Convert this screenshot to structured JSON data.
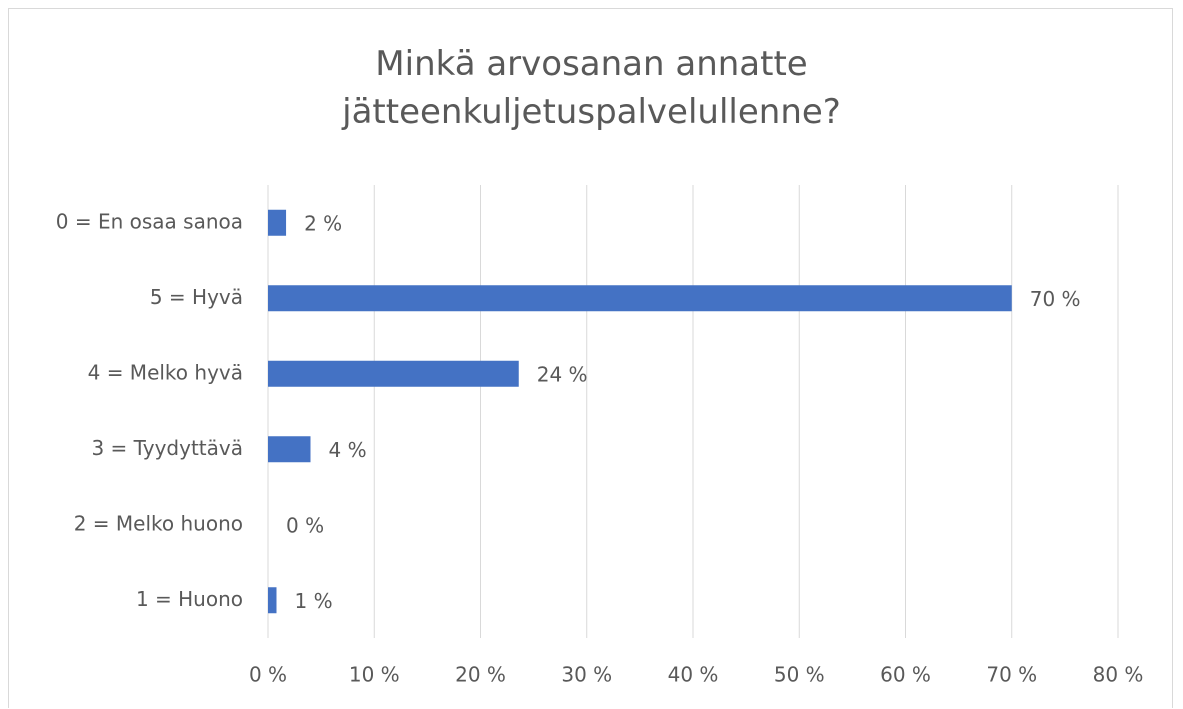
{
  "chart_data": {
    "type": "hbar",
    "title": "Minkä arvosanan annatte jätteenkuljetuspalvelullenne?",
    "categories": [
      "0 = En osaa sanoa",
      "5 = Hyvä",
      "4 = Melko hyvä",
      "3 = Tyydyttävä",
      "2 = Melko huono",
      "1 = Huono"
    ],
    "values": [
      1.7,
      70,
      23.6,
      4,
      0,
      0.8
    ],
    "value_labels": [
      "2 %",
      "70 %",
      "24 %",
      "4 %",
      "0 %",
      "1 %"
    ],
    "color": "#4472c4",
    "xlim": [
      0,
      80
    ],
    "xticks": [
      {
        "value": 0,
        "label": "0 %"
      },
      {
        "value": 10,
        "label": "10 %"
      },
      {
        "value": 20,
        "label": "20 %"
      },
      {
        "value": 30,
        "label": "30 %"
      },
      {
        "value": 40,
        "label": "40 %"
      },
      {
        "value": 50,
        "label": "50 %"
      },
      {
        "value": 60,
        "label": "60 %"
      },
      {
        "value": 70,
        "label": "70 %"
      },
      {
        "value": 80,
        "label": "80 %"
      }
    ],
    "grid": true
  }
}
